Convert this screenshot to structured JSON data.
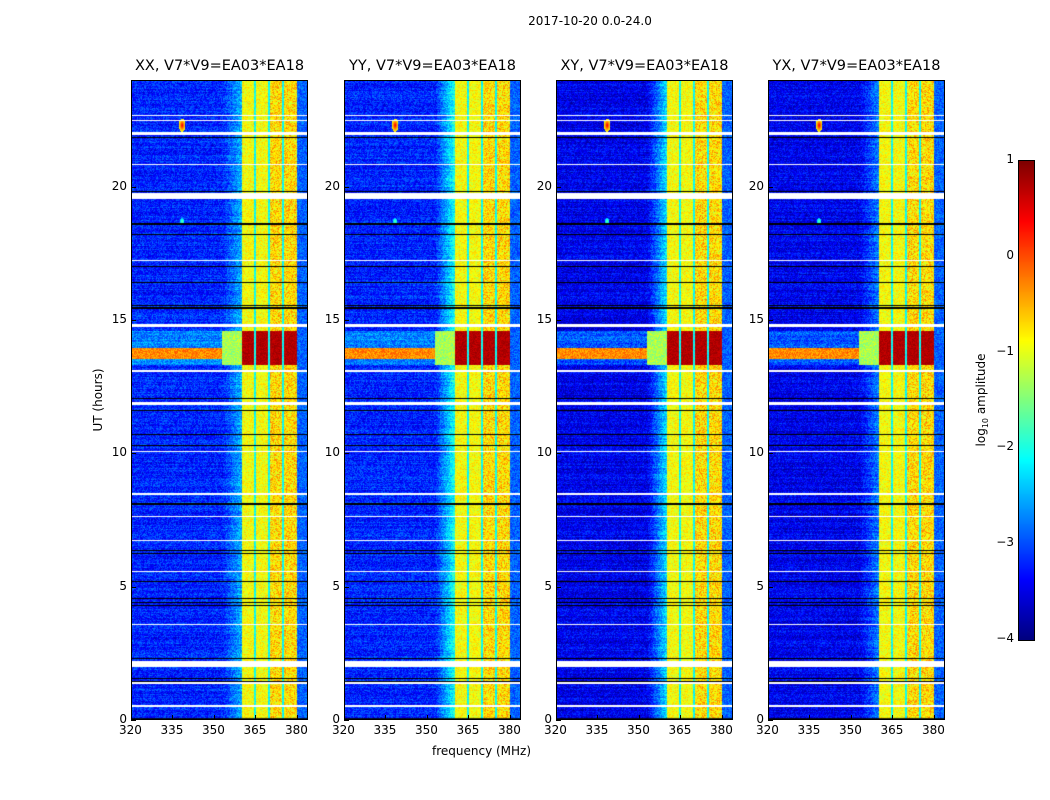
{
  "suptitle": "2017-10-20 0.0-24.0",
  "xlabel": "frequency (MHz)",
  "ylabel": "UT (hours)",
  "chart_data": [
    {
      "type": "heatmap",
      "title": "XX, V7*V9=EA03*EA18",
      "xlim": [
        320,
        384
      ],
      "ylim": [
        0,
        24
      ],
      "xticks": [
        "320",
        "335",
        "350",
        "365",
        "380"
      ],
      "yticks": [
        "0",
        "5",
        "10",
        "15",
        "20"
      ],
      "band_mhz": [
        360,
        380
      ],
      "flare_hours": [
        13.3,
        14.6
      ]
    },
    {
      "type": "heatmap",
      "title": "YY, V7*V9=EA03*EA18",
      "xlim": [
        320,
        384
      ],
      "ylim": [
        0,
        24
      ],
      "xticks": [
        "320",
        "335",
        "350",
        "365",
        "380"
      ],
      "yticks": [
        "0",
        "5",
        "10",
        "15",
        "20"
      ],
      "band_mhz": [
        360,
        380
      ],
      "flare_hours": [
        13.3,
        14.6
      ]
    },
    {
      "type": "heatmap",
      "title": "XY, V7*V9=EA03*EA18",
      "xlim": [
        320,
        384
      ],
      "ylim": [
        0,
        24
      ],
      "xticks": [
        "320",
        "335",
        "350",
        "365",
        "380"
      ],
      "yticks": [
        "0",
        "5",
        "10",
        "15",
        "20"
      ],
      "band_mhz": [
        360,
        380
      ],
      "flare_hours": [
        13.3,
        14.6
      ]
    },
    {
      "type": "heatmap",
      "title": "YX, V7*V9=EA03*EA18",
      "xlim": [
        320,
        384
      ],
      "ylim": [
        0,
        24
      ],
      "xticks": [
        "320",
        "335",
        "350",
        "365",
        "380"
      ],
      "yticks": [
        "0",
        "5",
        "10",
        "15",
        "20"
      ],
      "band_mhz": [
        360,
        380
      ],
      "flare_hours": [
        13.3,
        14.6
      ]
    }
  ],
  "colorbar": {
    "label": "log10 amplitude",
    "label_main": "log",
    "label_sub": "10",
    "label_rest": " amplitude",
    "range": [
      -4,
      1
    ],
    "ticks": [
      "1",
      "0",
      "−1",
      "−2",
      "−3",
      "−4"
    ],
    "colormap": "jet"
  }
}
